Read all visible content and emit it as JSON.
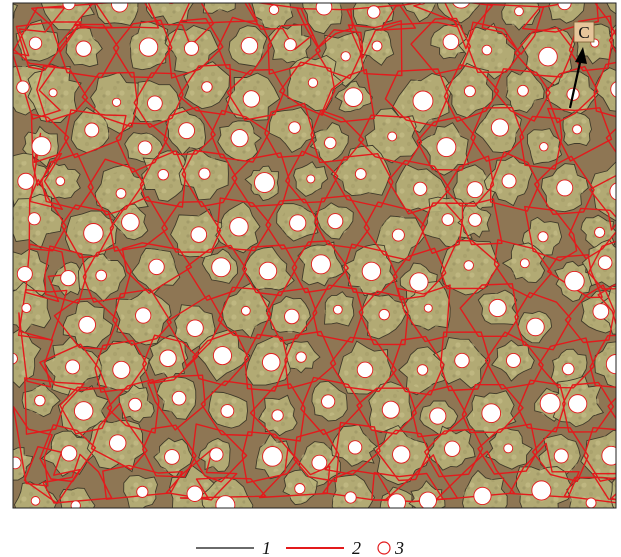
{
  "figure": {
    "colors": {
      "ground": "#8e7654",
      "crown_fill": "#b9b47a",
      "crown_edge": "#3f3a2a",
      "voronoi_line": "#e31a1c",
      "seed_fill": "#ffffff",
      "seed_stroke": "#e31a1c",
      "frame": "#222222"
    },
    "marker": {
      "label": "C",
      "icon": "arrow-up-icon"
    },
    "legend": {
      "items": [
        {
          "symbol": "black-line",
          "label": "1"
        },
        {
          "symbol": "red-line",
          "label": "2"
        },
        {
          "symbol": "red-circle",
          "label": "3"
        }
      ]
    }
  }
}
